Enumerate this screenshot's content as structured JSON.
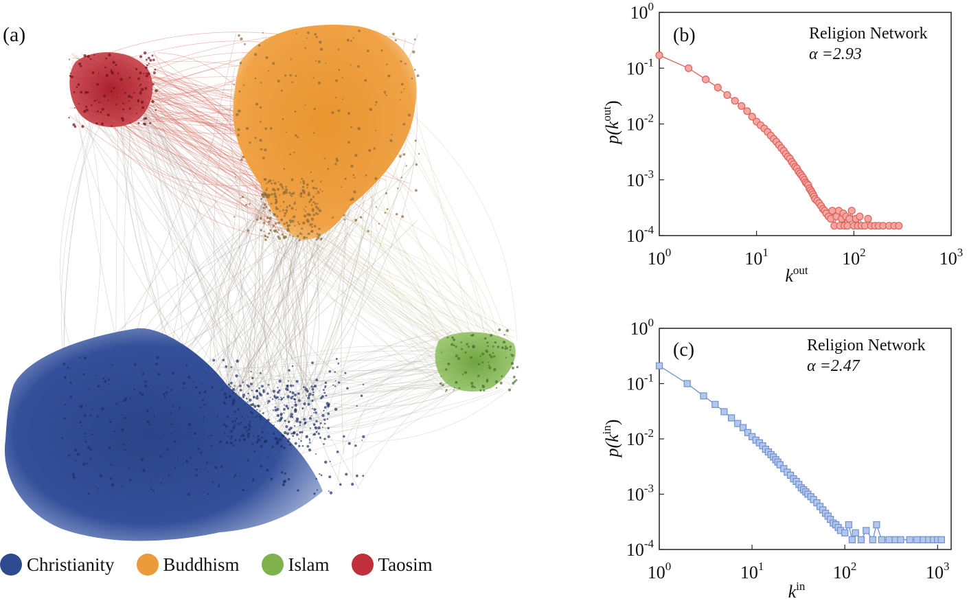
{
  "network_panel": {
    "label": "(a)",
    "clusters": [
      {
        "name": "Christianity",
        "color": "#2f4b8f"
      },
      {
        "name": "Buddhism",
        "color": "#eb9b3a"
      },
      {
        "name": "Islam",
        "color": "#7fb24c"
      },
      {
        "name": "Taosim",
        "color": "#c0303a"
      }
    ]
  },
  "chart_data": [
    {
      "panel": "(b)",
      "type": "scatter",
      "annotation": "Religion Network",
      "alpha_label": "α =2.93",
      "xlabel": "k",
      "xlabel_sup": "out",
      "ylabel_p": "p(k",
      "ylabel_sup": "out",
      "ylabel_close": ")",
      "xscale": "log",
      "yscale": "log",
      "xlim": [
        1,
        1000
      ],
      "ylim": [
        0.0001,
        1
      ],
      "xticks": [
        {
          "base": "10",
          "exp": "0"
        },
        {
          "base": "10",
          "exp": "1"
        },
        {
          "base": "10",
          "exp": "2"
        },
        {
          "base": "10",
          "exp": "3"
        }
      ],
      "yticks": [
        {
          "base": "10",
          "exp": "0"
        },
        {
          "base": "10",
          "exp": "-1"
        },
        {
          "base": "10",
          "exp": "-2"
        },
        {
          "base": "10",
          "exp": "-3"
        },
        {
          "base": "10",
          "exp": "-4"
        }
      ],
      "marker": "circle",
      "color": "#e0605a",
      "fill": "#f3a7a0",
      "x": [
        1,
        2,
        3,
        4,
        5,
        6,
        7,
        8,
        9,
        10,
        11,
        12,
        13,
        14,
        15,
        16,
        17,
        18,
        19,
        20,
        21,
        22,
        23,
        24,
        25,
        26,
        27,
        28,
        29,
        30,
        31,
        32,
        33,
        34,
        35,
        36,
        37,
        38,
        39,
        40,
        42,
        44,
        46,
        48,
        50,
        52,
        55,
        58,
        60,
        63,
        66,
        70,
        72,
        75,
        78,
        80,
        83,
        86,
        90,
        95,
        100,
        105,
        110,
        115,
        120,
        130,
        140,
        150,
        165,
        180,
        200,
        230,
        260,
        290
      ],
      "y": [
        0.17,
        0.1,
        0.063,
        0.045,
        0.033,
        0.026,
        0.021,
        0.017,
        0.0135,
        0.011,
        0.0095,
        0.0083,
        0.0072,
        0.0062,
        0.0054,
        0.0048,
        0.0042,
        0.0037,
        0.0033,
        0.0029,
        0.0026,
        0.0024,
        0.0021,
        0.0019,
        0.0017,
        0.0016,
        0.0014,
        0.0013,
        0.0012,
        0.0011,
        0.001,
        0.0009,
        0.00085,
        0.0008,
        0.0007,
        0.00065,
        0.0006,
        0.00055,
        0.0005,
        0.00045,
        0.00042,
        0.00038,
        0.00034,
        0.0003,
        0.00028,
        0.00025,
        0.00022,
        0.0002,
        0.00028,
        0.00015,
        0.00022,
        0.00028,
        0.00015,
        0.0002,
        0.00025,
        0.00015,
        0.00022,
        0.00015,
        0.0002,
        0.00028,
        0.00015,
        0.0002,
        0.00015,
        0.00022,
        0.00015,
        0.00015,
        0.0002,
        0.00015,
        0.00015,
        0.00015,
        0.00015,
        0.00015,
        0.00015,
        0.00015
      ]
    },
    {
      "panel": "(c)",
      "type": "scatter",
      "annotation": "Religion Network",
      "alpha_label": "α =2.47",
      "xlabel": "k",
      "xlabel_sup": "in",
      "ylabel_p": "p(k",
      "ylabel_sup": "in",
      "ylabel_close": ")",
      "xscale": "log",
      "yscale": "log",
      "xlim": [
        1,
        1400
      ],
      "ylim": [
        0.0001,
        1
      ],
      "xticks": [
        {
          "base": "10",
          "exp": "0"
        },
        {
          "base": "10",
          "exp": "1"
        },
        {
          "base": "10",
          "exp": "2"
        },
        {
          "base": "10",
          "exp": "3"
        }
      ],
      "yticks": [
        {
          "base": "10",
          "exp": "0"
        },
        {
          "base": "10",
          "exp": "-1"
        },
        {
          "base": "10",
          "exp": "-2"
        },
        {
          "base": "10",
          "exp": "-3"
        },
        {
          "base": "10",
          "exp": "-4"
        }
      ],
      "marker": "square",
      "color": "#6f8fcf",
      "fill": "#b3c6ec",
      "x": [
        1,
        2,
        3,
        4,
        5,
        6,
        7,
        8,
        9,
        10,
        11,
        12,
        13,
        14,
        15,
        16,
        17,
        18,
        19,
        20,
        22,
        24,
        26,
        28,
        30,
        32,
        34,
        36,
        38,
        40,
        43,
        46,
        50,
        54,
        58,
        62,
        66,
        70,
        75,
        80,
        85,
        90,
        100,
        110,
        120,
        130,
        150,
        170,
        200,
        220,
        250,
        300,
        350,
        400,
        500,
        600,
        700,
        800,
        900,
        1000,
        1100
      ],
      "y": [
        0.21,
        0.1,
        0.06,
        0.042,
        0.031,
        0.024,
        0.019,
        0.016,
        0.013,
        0.011,
        0.0095,
        0.0085,
        0.0075,
        0.0065,
        0.0058,
        0.0052,
        0.0047,
        0.0042,
        0.0038,
        0.0034,
        0.0029,
        0.0025,
        0.0022,
        0.0019,
        0.0017,
        0.0015,
        0.0013,
        0.0012,
        0.0011,
        0.001,
        0.0009,
        0.0008,
        0.0007,
        0.0006,
        0.00052,
        0.00045,
        0.0004,
        0.00035,
        0.0003,
        0.00028,
        0.00025,
        0.00022,
        0.0002,
        0.00028,
        0.00015,
        0.0002,
        0.00015,
        0.00022,
        0.00015,
        0.00028,
        0.00015,
        0.00015,
        0.00015,
        0.00015,
        0.00015,
        0.00015,
        0.00015,
        0.00015,
        0.00015,
        0.00015,
        0.00015
      ]
    }
  ]
}
